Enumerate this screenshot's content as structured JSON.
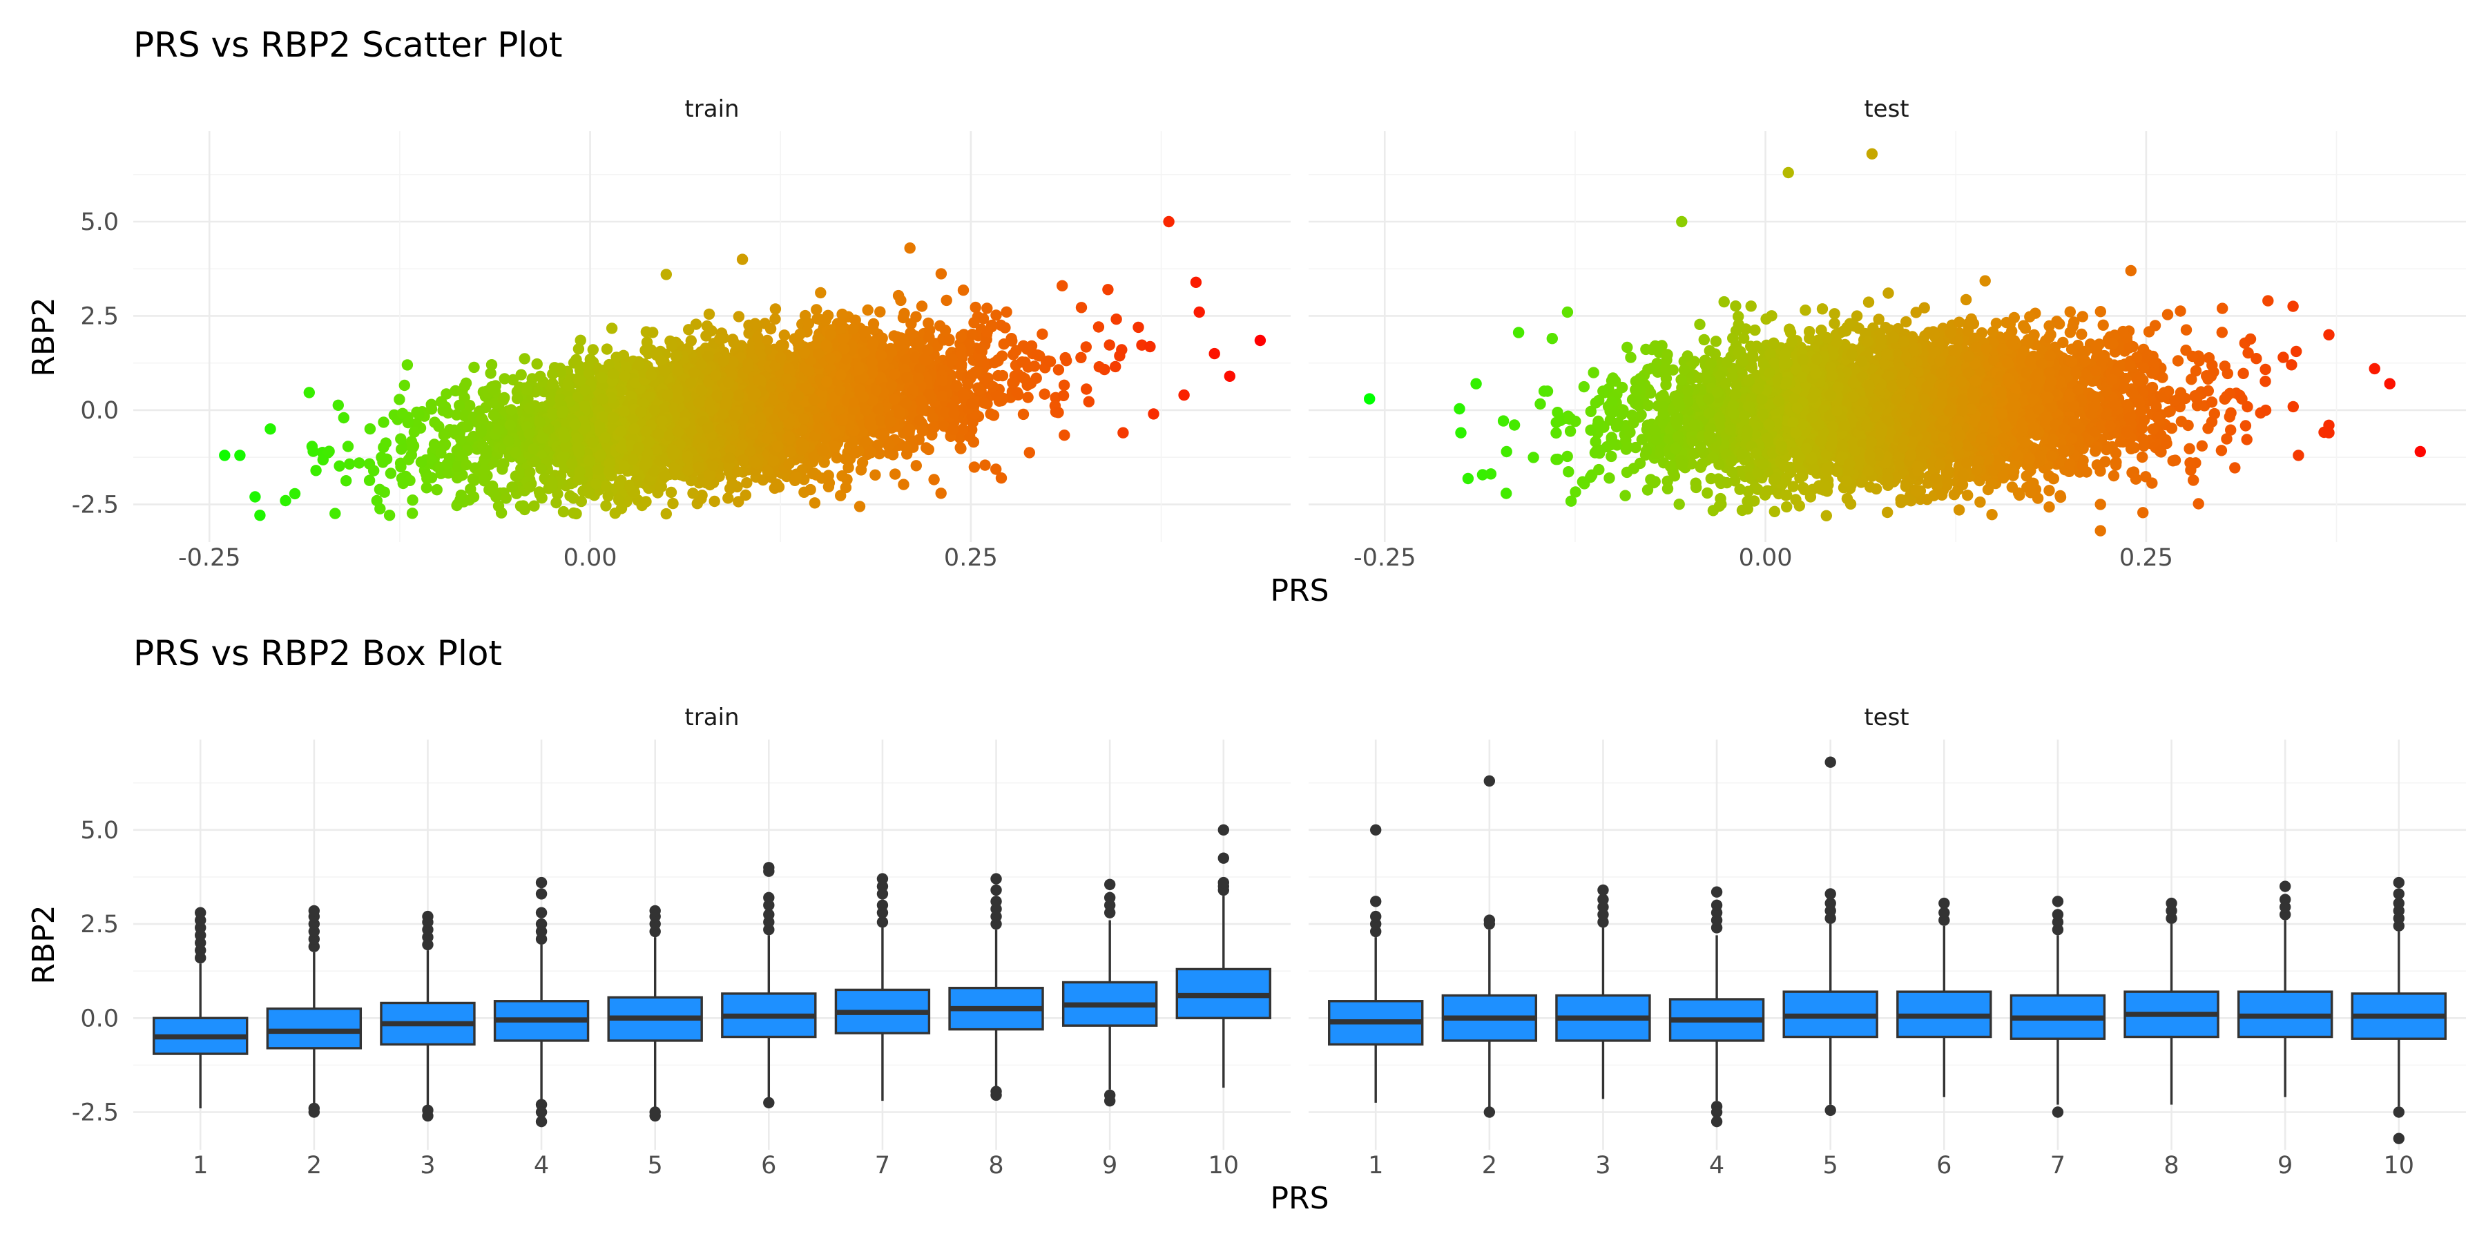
{
  "chart_data": [
    {
      "type": "scatter",
      "title": "PRS vs RBP2 Scatter Plot",
      "xlabel": "PRS",
      "ylabel": "RBP2",
      "xlim": [
        -0.3,
        0.46
      ],
      "ylim": [
        -3.5,
        7.4
      ],
      "x_ticks": [
        "-0.25",
        "0.00",
        "0.25"
      ],
      "x_tick_values": [
        -0.25,
        0.0,
        0.25
      ],
      "y_ticks": [
        "-2.5",
        "0.0",
        "2.5",
        "5.0"
      ],
      "y_tick_values": [
        -2.5,
        0.0,
        2.5,
        5.0
      ],
      "grid": true,
      "legend": "none",
      "color_scale": {
        "encodes": "PRS",
        "low": "#00ff00",
        "mid": "#b8b800",
        "high": "#ff0000"
      },
      "point_color_gradient": [
        "#00ff00",
        "#66e000",
        "#b8b800",
        "#e08800",
        "#f05a00",
        "#ff0000"
      ],
      "facets": [
        {
          "label": "train",
          "points_estimated": [
            {
              "x": 0.44,
              "y": 1.85
            },
            {
              "x": 0.38,
              "y": 5.0
            },
            {
              "x": 0.4,
              "y": 2.6
            },
            {
              "x": 0.41,
              "y": 1.5
            },
            {
              "x": 0.42,
              "y": 0.9
            },
            {
              "x": 0.39,
              "y": 0.4
            },
            {
              "x": 0.36,
              "y": 2.2
            },
            {
              "x": 0.37,
              "y": -0.1
            },
            {
              "x": 0.34,
              "y": 3.2
            },
            {
              "x": 0.35,
              "y": -0.6
            },
            {
              "x": 0.21,
              "y": 4.3
            },
            {
              "x": 0.1,
              "y": 4.0
            },
            {
              "x": 0.05,
              "y": 3.6
            },
            {
              "x": 0.05,
              "y": -2.75
            },
            {
              "x": -0.24,
              "y": -1.2
            },
            {
              "x": -0.23,
              "y": -1.2
            },
            {
              "x": -0.22,
              "y": -2.3
            },
            {
              "x": -0.2,
              "y": -2.4
            },
            {
              "x": -0.21,
              "y": -0.5
            },
            {
              "x": -0.18,
              "y": -1.6
            },
            {
              "x": -0.14,
              "y": -2.4
            },
            {
              "x": -0.12,
              "y": 1.2
            },
            {
              "x": 0.27,
              "y": -1.8
            },
            {
              "x": 0.31,
              "y": 3.3
            }
          ]
        },
        {
          "label": "test",
          "points_estimated": [
            {
              "x": -0.26,
              "y": 0.3
            },
            {
              "x": 0.07,
              "y": 6.8
            },
            {
              "x": 0.015,
              "y": 6.3
            },
            {
              "x": -0.055,
              "y": 5.0
            },
            {
              "x": 0.43,
              "y": -1.1
            },
            {
              "x": 0.41,
              "y": 0.7
            },
            {
              "x": 0.4,
              "y": 1.1
            },
            {
              "x": 0.37,
              "y": -0.6
            },
            {
              "x": 0.37,
              "y": -0.4
            },
            {
              "x": 0.34,
              "y": 1.4
            },
            {
              "x": 0.35,
              "y": -1.2
            },
            {
              "x": 0.33,
              "y": 2.9
            },
            {
              "x": 0.3,
              "y": 2.7
            },
            {
              "x": 0.22,
              "y": -3.2
            },
            {
              "x": 0.24,
              "y": 3.7
            },
            {
              "x": 0.04,
              "y": -2.8
            },
            {
              "x": -0.2,
              "y": -0.6
            },
            {
              "x": -0.19,
              "y": 0.7
            },
            {
              "x": -0.17,
              "y": -1.1
            },
            {
              "x": -0.13,
              "y": 2.6
            },
            {
              "x": -0.14,
              "y": 1.9
            },
            {
              "x": -0.12,
              "y": -1.9
            },
            {
              "x": 0.22,
              "y": -2.5
            },
            {
              "x": 0.37,
              "y": 2.0
            }
          ]
        }
      ]
    },
    {
      "type": "box",
      "title": "PRS vs RBP2 Box Plot",
      "xlabel": "PRS",
      "ylabel": "RBP2",
      "ylim": [
        -3.5,
        7.4
      ],
      "categories": [
        "1",
        "2",
        "3",
        "4",
        "5",
        "6",
        "7",
        "8",
        "9",
        "10"
      ],
      "y_ticks": [
        "-2.5",
        "0.0",
        "2.5",
        "5.0"
      ],
      "y_tick_values": [
        -2.5,
        0.0,
        2.5,
        5.0
      ],
      "grid": true,
      "legend": "none",
      "box_fill": "#1e90ff",
      "facets": [
        {
          "label": "train",
          "boxes": [
            {
              "q1": -0.95,
              "median": -0.5,
              "q3": 0.0,
              "whisker_low": -2.4,
              "whisker_high": 1.45,
              "outliers": [
                1.6,
                1.8,
                2.0,
                2.2,
                2.4,
                2.6,
                2.8
              ]
            },
            {
              "q1": -0.8,
              "median": -0.35,
              "q3": 0.25,
              "whisker_low": -2.35,
              "whisker_high": 1.75,
              "outliers": [
                1.9,
                2.1,
                2.3,
                2.5,
                2.7,
                2.85,
                -2.4,
                -2.5
              ]
            },
            {
              "q1": -0.7,
              "median": -0.15,
              "q3": 0.4,
              "whisker_low": -2.35,
              "whisker_high": 1.8,
              "outliers": [
                1.95,
                2.15,
                2.35,
                2.55,
                2.7,
                -2.45,
                -2.6
              ]
            },
            {
              "q1": -0.6,
              "median": -0.05,
              "q3": 0.45,
              "whisker_low": -2.2,
              "whisker_high": 1.95,
              "outliers": [
                2.1,
                2.3,
                2.5,
                2.8,
                3.3,
                3.6,
                -2.3,
                -2.5,
                -2.75
              ]
            },
            {
              "q1": -0.6,
              "median": 0.0,
              "q3": 0.55,
              "whisker_low": -2.45,
              "whisker_high": 2.15,
              "outliers": [
                2.3,
                2.5,
                2.7,
                2.85,
                -2.5,
                -2.6
              ]
            },
            {
              "q1": -0.5,
              "median": 0.05,
              "q3": 0.65,
              "whisker_low": -2.15,
              "whisker_high": 2.2,
              "outliers": [
                2.35,
                2.55,
                2.75,
                3.0,
                3.2,
                3.9,
                4.0,
                -2.25
              ]
            },
            {
              "q1": -0.4,
              "median": 0.15,
              "q3": 0.75,
              "whisker_low": -2.2,
              "whisker_high": 2.4,
              "outliers": [
                2.55,
                2.8,
                3.0,
                3.3,
                3.5,
                3.7
              ]
            },
            {
              "q1": -0.3,
              "median": 0.25,
              "q3": 0.8,
              "whisker_low": -1.85,
              "whisker_high": 2.35,
              "outliers": [
                2.5,
                2.7,
                2.9,
                3.1,
                3.4,
                3.7,
                -1.95,
                -2.05
              ]
            },
            {
              "q1": -0.2,
              "median": 0.35,
              "q3": 0.95,
              "whisker_low": -1.9,
              "whisker_high": 2.6,
              "outliers": [
                2.8,
                3.0,
                3.2,
                3.55,
                -2.05,
                -2.2
              ]
            },
            {
              "q1": 0.0,
              "median": 0.6,
              "q3": 1.3,
              "whisker_low": -1.85,
              "whisker_high": 3.25,
              "outliers": [
                3.4,
                3.5,
                3.6,
                4.25,
                5.0
              ]
            }
          ]
        },
        {
          "label": "test",
          "boxes": [
            {
              "q1": -0.7,
              "median": -0.1,
              "q3": 0.45,
              "whisker_low": -2.25,
              "whisker_high": 2.15,
              "outliers": [
                2.3,
                2.5,
                2.7,
                3.1,
                5.0
              ]
            },
            {
              "q1": -0.6,
              "median": 0.0,
              "q3": 0.6,
              "whisker_low": -2.4,
              "whisker_high": 2.35,
              "outliers": [
                2.5,
                2.6,
                6.3,
                -2.5
              ]
            },
            {
              "q1": -0.6,
              "median": 0.0,
              "q3": 0.6,
              "whisker_low": -2.15,
              "whisker_high": 2.4,
              "outliers": [
                2.55,
                2.75,
                2.95,
                3.15,
                3.4
              ]
            },
            {
              "q1": -0.6,
              "median": -0.05,
              "q3": 0.5,
              "whisker_low": -2.2,
              "whisker_high": 2.2,
              "outliers": [
                2.4,
                2.6,
                2.8,
                3.0,
                3.35,
                -2.35,
                -2.5,
                -2.75
              ]
            },
            {
              "q1": -0.5,
              "median": 0.05,
              "q3": 0.7,
              "whisker_low": -2.3,
              "whisker_high": 2.5,
              "outliers": [
                2.65,
                2.85,
                3.05,
                3.3,
                6.8,
                -2.45
              ]
            },
            {
              "q1": -0.5,
              "median": 0.05,
              "q3": 0.7,
              "whisker_low": -2.1,
              "whisker_high": 2.45,
              "outliers": [
                2.6,
                2.8,
                3.05
              ]
            },
            {
              "q1": -0.55,
              "median": 0.0,
              "q3": 0.6,
              "whisker_low": -2.3,
              "whisker_high": 2.2,
              "outliers": [
                2.35,
                2.55,
                2.75,
                3.1,
                -2.5
              ]
            },
            {
              "q1": -0.5,
              "median": 0.1,
              "q3": 0.7,
              "whisker_low": -2.3,
              "whisker_high": 2.5,
              "outliers": [
                2.65,
                2.85,
                3.05
              ]
            },
            {
              "q1": -0.5,
              "median": 0.05,
              "q3": 0.7,
              "whisker_low": -2.1,
              "whisker_high": 2.6,
              "outliers": [
                2.75,
                2.95,
                3.15,
                3.5
              ]
            },
            {
              "q1": -0.55,
              "median": 0.05,
              "q3": 0.65,
              "whisker_low": -2.35,
              "whisker_high": 2.3,
              "outliers": [
                2.45,
                2.65,
                2.85,
                3.05,
                3.3,
                3.6,
                -2.5,
                -3.2
              ]
            }
          ]
        }
      ]
    }
  ]
}
